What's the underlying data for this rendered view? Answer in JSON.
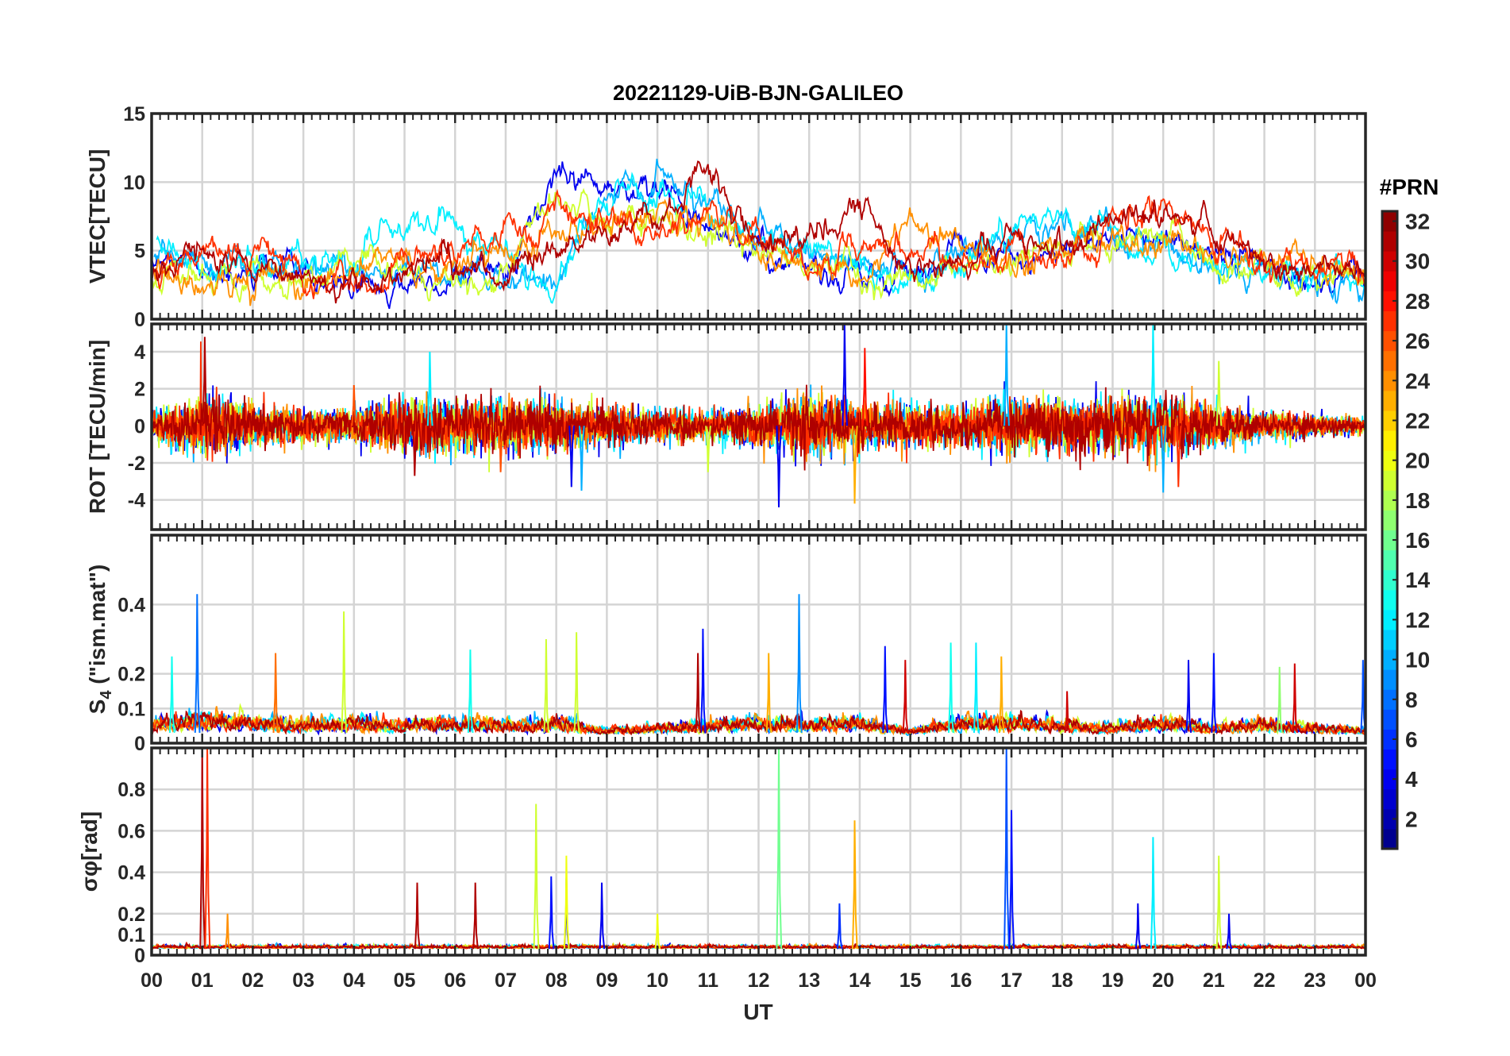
{
  "chart_data": {
    "type": "line",
    "title": "20221129-UiB-BJN-GALILEO",
    "xlabel": "UT",
    "x_ticks": [
      "00",
      "01",
      "02",
      "03",
      "04",
      "05",
      "06",
      "07",
      "08",
      "09",
      "10",
      "11",
      "12",
      "13",
      "14",
      "15",
      "16",
      "17",
      "18",
      "19",
      "20",
      "21",
      "22",
      "23",
      "00"
    ],
    "xlim": [
      0,
      24
    ],
    "grid": true,
    "colorbar": {
      "title": "#PRN",
      "colormap": "jet",
      "range": [
        1,
        32
      ],
      "ticks": [
        "2",
        "4",
        "6",
        "8",
        "10",
        "12",
        "14",
        "16",
        "18",
        "20",
        "22",
        "24",
        "26",
        "28",
        "30",
        "32"
      ]
    },
    "panels": [
      {
        "ylabel": "VTEC[TECU]",
        "ylim": [
          0,
          15
        ],
        "yticks": [
          "0",
          "5",
          "10",
          "15"
        ],
        "hours": [
          0,
          1,
          2,
          3,
          4,
          5,
          6,
          7,
          8,
          9,
          10,
          11,
          12,
          13,
          14,
          15,
          16,
          17,
          18,
          19,
          20,
          21,
          22,
          23,
          24
        ],
        "series": [
          {
            "prn": 4,
            "values": [
              4,
              3,
              3,
              3,
              2.5,
              2.5,
              3,
              3.5,
              10,
              10,
              9,
              7,
              5,
              3,
              4,
              3,
              5,
              4,
              5,
              6,
              6,
              5,
              3.5,
              3,
              2.5
            ]
          },
          {
            "prn": 10,
            "values": [
              5,
              4,
              3.5,
              3.5,
              3.5,
              4,
              4,
              3,
              3,
              9,
              10.5,
              9,
              6,
              5,
              4,
              3,
              4,
              6,
              7,
              6,
              5,
              4,
              3.5,
              3,
              2.5
            ]
          },
          {
            "prn": 12,
            "values": [
              6,
              4,
              4,
              4,
              5,
              7,
              7,
              5,
              3,
              9,
              9,
              8,
              6,
              5,
              4,
              3,
              3,
              7,
              7,
              6,
              5,
              4,
              3.5,
              3,
              2.5
            ]
          },
          {
            "prn": 19,
            "values": [
              3,
              3,
              3,
              3,
              4,
              3,
              2.5,
              3,
              9,
              7,
              8,
              6,
              5,
              4,
              3,
              3,
              4,
              4,
              5,
              6,
              6,
              4,
              3.5,
              3,
              3
            ]
          },
          {
            "prn": 24,
            "values": [
              3.5,
              2,
              3,
              3,
              3.5,
              4,
              4,
              5,
              6,
              7,
              8,
              7,
              5,
              4,
              3,
              7,
              5,
              4,
              5,
              6,
              6,
              5,
              4,
              4,
              3
            ]
          },
          {
            "prn": 27,
            "values": [
              3,
              5,
              5,
              3,
              3,
              4,
              5,
              6,
              8,
              7,
              6,
              9,
              6,
              4,
              5,
              5,
              4,
              5,
              4,
              7,
              8,
              6,
              4,
              4,
              3
            ]
          },
          {
            "prn": 31,
            "values": [
              3,
              5,
              4,
              3,
              3,
              3,
              4,
              3,
              5,
              6,
              8,
              10,
              6,
              5,
              8,
              4,
              3,
              6,
              5,
              7,
              8,
              6,
              4,
              4,
              3
            ]
          }
        ]
      },
      {
        "ylabel": "ROT [TECU/min]",
        "ylim": [
          -5.6,
          5.5
        ],
        "yticks": [
          "-4",
          "-2",
          "0",
          "2",
          "4"
        ],
        "amplitude_hourly": [
          0.5,
          1.2,
          0.8,
          0.6,
          0.7,
          1,
          1,
          1,
          1,
          0.7,
          0.6,
          0.5,
          0.8,
          1.2,
          0.9,
          0.8,
          0.8,
          1,
          1,
          1,
          1.1,
          0.8,
          0.5,
          0.4,
          0.3
        ],
        "prns": [
          4,
          10,
          12,
          19,
          24,
          27,
          31
        ],
        "spikes": [
          [
            1.05,
            4.8,
            31
          ],
          [
            5.2,
            -2.7,
            31
          ],
          [
            5.5,
            4,
            12
          ],
          [
            6.9,
            -2.5,
            26
          ],
          [
            8.3,
            -3.3,
            4
          ],
          [
            8.5,
            -3.5,
            10
          ],
          [
            12.4,
            -4.4,
            4
          ],
          [
            13.7,
            5.5,
            4
          ],
          [
            13.9,
            -4.2,
            23
          ],
          [
            14.1,
            4.2,
            28
          ],
          [
            16.9,
            5.5,
            10
          ],
          [
            19.8,
            5.5,
            12
          ],
          [
            20.0,
            -3.6,
            10
          ],
          [
            20.3,
            -3.3,
            27
          ],
          [
            21.1,
            3.5,
            19
          ],
          [
            11.0,
            -2.5,
            19
          ],
          [
            4.0,
            2.2,
            26
          ]
        ]
      },
      {
        "ylabel": "S4 (\"ism.mat\")",
        "ylim": [
          0,
          0.6
        ],
        "yticks": [
          "0",
          "0.1",
          "0.2",
          "0.4"
        ],
        "amplitude_hourly": [
          0.05,
          0.06,
          0.05,
          0.04,
          0.05,
          0.04,
          0.05,
          0.04,
          0.05,
          0.02,
          0.03,
          0.04,
          0.05,
          0.04,
          0.05,
          0.02,
          0.05,
          0.05,
          0.04,
          0.03,
          0.05,
          0.03,
          0.04,
          0.03,
          0.02
        ],
        "prns": [
          4,
          10,
          12,
          19,
          24,
          27,
          31
        ],
        "spikes": [
          [
            0.9,
            0.43,
            8
          ],
          [
            0.4,
            0.25,
            13
          ],
          [
            2.45,
            0.26,
            25
          ],
          [
            3.8,
            0.38,
            19
          ],
          [
            6.3,
            0.27,
            13
          ],
          [
            7.8,
            0.3,
            19
          ],
          [
            8.4,
            0.32,
            19
          ],
          [
            10.9,
            0.33,
            5
          ],
          [
            10.8,
            0.26,
            31
          ],
          [
            12.2,
            0.26,
            23
          ],
          [
            12.8,
            0.43,
            9
          ],
          [
            14.5,
            0.28,
            5
          ],
          [
            14.9,
            0.24,
            30
          ],
          [
            15.8,
            0.29,
            13
          ],
          [
            16.3,
            0.29,
            12
          ],
          [
            16.8,
            0.25,
            23
          ],
          [
            18.1,
            0.15,
            30
          ],
          [
            20.5,
            0.24,
            4
          ],
          [
            21.0,
            0.26,
            5
          ],
          [
            22.3,
            0.22,
            17
          ],
          [
            22.6,
            0.23,
            30
          ],
          [
            23.95,
            0.24,
            7
          ]
        ]
      },
      {
        "ylabel": "σφ[rad]",
        "ylim": [
          0,
          1.0
        ],
        "yticks": [
          "0",
          "0.1",
          "0.2",
          "0.4",
          "0.6",
          "0.8"
        ],
        "baseline": 0.03,
        "prns": [
          4,
          10,
          12,
          19,
          24,
          27,
          31
        ],
        "spikes": [
          [
            1.0,
            1.0,
            31
          ],
          [
            1.1,
            1.0,
            27
          ],
          [
            1.5,
            0.2,
            24
          ],
          [
            5.25,
            0.35,
            31
          ],
          [
            6.4,
            0.35,
            31
          ],
          [
            7.6,
            0.73,
            19
          ],
          [
            8.2,
            0.37,
            4
          ],
          [
            8.2,
            0.48,
            20
          ],
          [
            8.9,
            0.35,
            4
          ],
          [
            12.4,
            1.0,
            16
          ],
          [
            13.9,
            0.65,
            23
          ],
          [
            13.6,
            0.25,
            6
          ],
          [
            16.9,
            1.0,
            7
          ],
          [
            17.0,
            0.7,
            5
          ],
          [
            19.8,
            0.57,
            12
          ],
          [
            19.5,
            0.25,
            4
          ],
          [
            21.1,
            0.48,
            19
          ],
          [
            21.3,
            0.2,
            4
          ],
          [
            10.0,
            0.2,
            20
          ],
          [
            7.9,
            0.38,
            5
          ]
        ]
      }
    ]
  }
}
